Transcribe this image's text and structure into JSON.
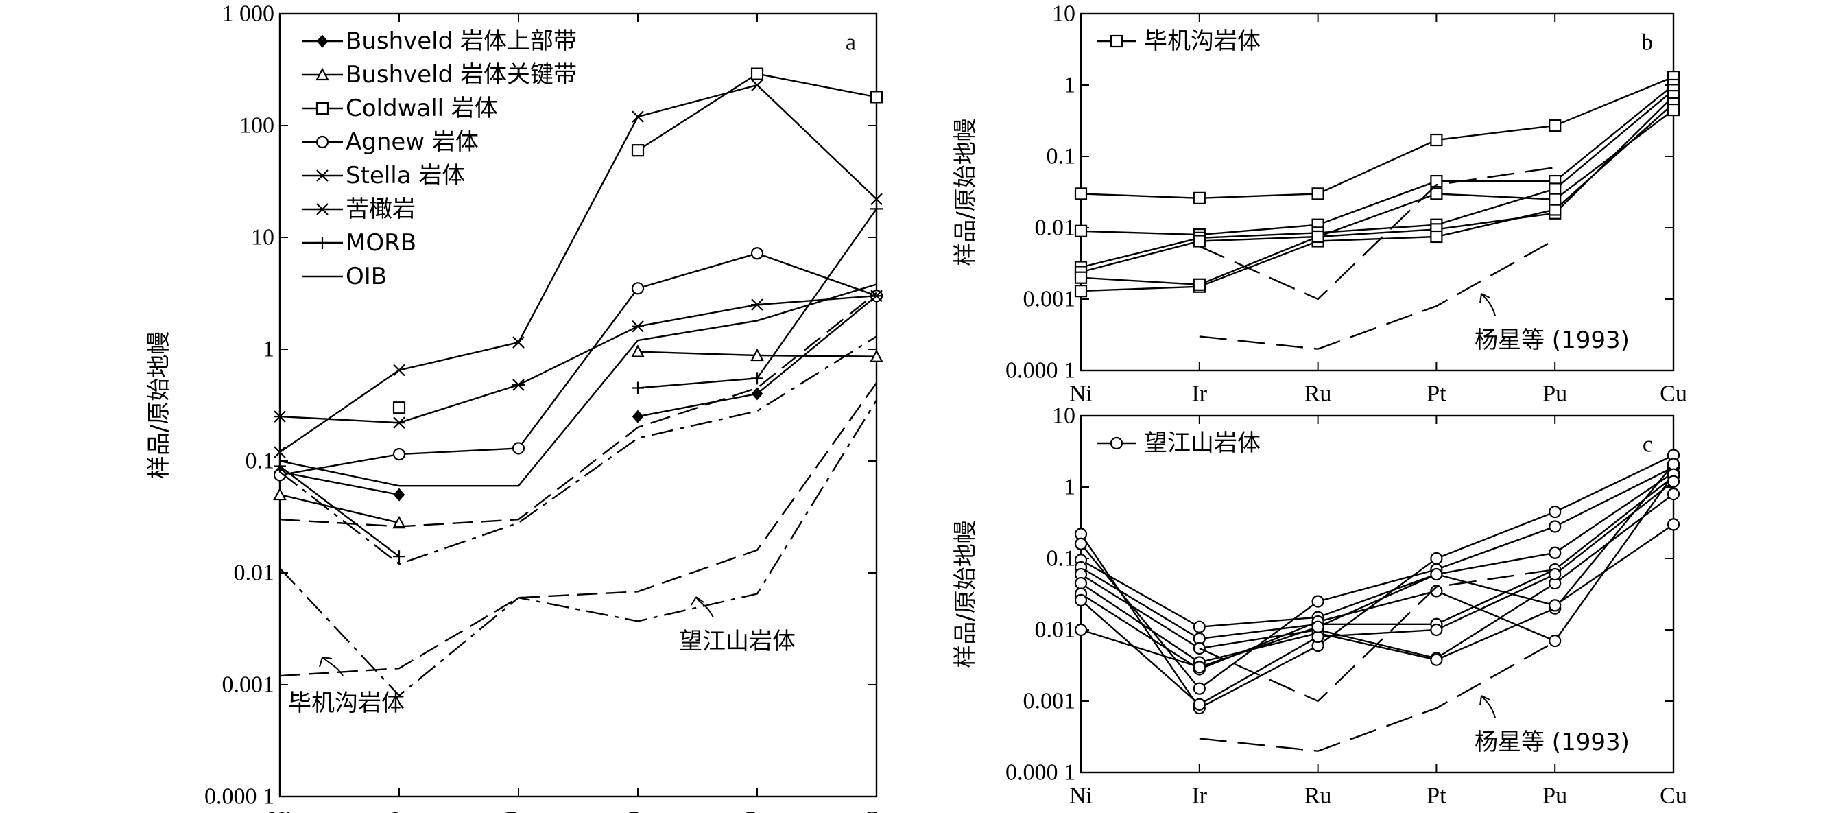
{
  "chart_data": [
    {
      "panel": "a",
      "type": "line",
      "yscale": "log",
      "ylim": [
        0.0001,
        1000
      ],
      "y_ticks": [
        "0.000 1",
        "0.001",
        "0.01",
        "0.1",
        "1",
        "10",
        "100",
        "1 000"
      ],
      "categories": [
        "Ni",
        "Ir",
        "Ru",
        "Pt",
        "Pu",
        "Cu"
      ],
      "ylabel": "样品/原始地幔",
      "panel_label": "a",
      "legend_position": "top-left",
      "series": [
        {
          "name": "Bushveld 岩体上部带",
          "marker": "diamond",
          "dash": "solid",
          "values": [
            0.08,
            0.05,
            null,
            0.25,
            0.4,
            3.0
          ]
        },
        {
          "name": "Bushveld 岩体关键带",
          "marker": "triangle",
          "dash": "solid",
          "values": [
            0.05,
            0.028,
            null,
            0.95,
            0.88,
            0.86
          ]
        },
        {
          "name": "Coldwall 岩体",
          "marker": "square",
          "dash": "solid",
          "values": [
            null,
            0.3,
            null,
            60,
            290,
            180
          ]
        },
        {
          "name": "Agnew 岩体",
          "marker": "circle",
          "dash": "solid",
          "values": [
            0.075,
            0.115,
            0.13,
            3.5,
            7.2,
            3.0
          ]
        },
        {
          "name": "Stella 岩体",
          "marker": "x",
          "dash": "solid",
          "values": [
            0.12,
            0.65,
            1.15,
            120,
            230,
            22
          ]
        },
        {
          "name": "苦橄岩",
          "marker": "asterisk",
          "dash": "solid",
          "values": [
            0.25,
            0.22,
            0.48,
            1.6,
            2.5,
            3.0
          ]
        },
        {
          "name": "MORB",
          "marker": "plus",
          "dash": "solid",
          "values": [
            0.09,
            0.014,
            null,
            0.45,
            0.55,
            18
          ]
        },
        {
          "name": "OIB",
          "marker": "none",
          "dash": "solid",
          "values": [
            0.1,
            0.06,
            0.06,
            1.2,
            1.8,
            3.8
          ]
        },
        {
          "name": "",
          "marker": "none",
          "dash": "dash",
          "values": [
            0.03,
            0.026,
            0.03,
            0.2,
            0.45,
            3.2
          ]
        },
        {
          "name": "",
          "marker": "none",
          "dash": "dashdot",
          "values": [
            0.08,
            0.012,
            0.028,
            0.16,
            0.28,
            1.3
          ]
        },
        {
          "name": "",
          "marker": "none",
          "dash": "dashdot",
          "values": [
            0.011,
            0.0008,
            0.006,
            0.0037,
            0.0065,
            0.35
          ]
        },
        {
          "name": "",
          "marker": "none",
          "dash": "dash",
          "values": [
            0.0012,
            0.0014,
            0.006,
            0.0068,
            0.016,
            0.5
          ]
        }
      ],
      "annotations": [
        "望江山岩体",
        "毕机沟岩体"
      ]
    },
    {
      "panel": "b",
      "type": "line",
      "yscale": "log",
      "ylim": [
        0.0001,
        10
      ],
      "y_ticks": [
        "0.000 1",
        "0.001",
        "0.01",
        "0.1",
        "1",
        "10"
      ],
      "categories": [
        "Ni",
        "Ir",
        "Ru",
        "Pt",
        "Pu",
        "Cu"
      ],
      "ylabel": "样品/原始地幔",
      "panel_label": "b",
      "legend": [
        "毕机沟岩体"
      ],
      "series": [
        {
          "name": "毕机沟岩体",
          "marker": "square",
          "values": [
            0.03,
            0.026,
            0.03,
            0.17,
            0.27,
            1.3
          ]
        },
        {
          "name": "毕机沟岩体",
          "marker": "square",
          "values": [
            0.009,
            0.008,
            0.011,
            0.045,
            0.045,
            1.0
          ]
        },
        {
          "name": "毕机沟岩体",
          "marker": "square",
          "values": [
            0.0028,
            0.0072,
            0.0085,
            0.011,
            0.035,
            0.85
          ]
        },
        {
          "name": "毕机沟岩体",
          "marker": "square",
          "values": [
            0.0024,
            0.0065,
            0.0075,
            0.0095,
            0.016,
            0.7
          ]
        },
        {
          "name": "毕机沟岩体",
          "marker": "square",
          "values": [
            0.0013,
            0.0015,
            0.0065,
            0.0075,
            0.018,
            0.55
          ]
        },
        {
          "name": "毕机沟岩体",
          "marker": "square",
          "values": [
            0.002,
            0.0016,
            0.0075,
            0.03,
            0.025,
            0.45
          ]
        }
      ],
      "reference_dashed": [
        {
          "name": "杨星等 (1993)",
          "values": [
            null,
            0.0055,
            0.001,
            0.04,
            0.07,
            null
          ]
        },
        {
          "name": "杨星等 (1993)",
          "values": [
            null,
            0.0003,
            0.0002,
            0.0008,
            0.0068,
            null
          ]
        }
      ],
      "annotation": "杨星等 (1993)"
    },
    {
      "panel": "c",
      "type": "line",
      "yscale": "log",
      "ylim": [
        0.0001,
        10
      ],
      "y_ticks": [
        "0.000 1",
        "0.001",
        "0.01",
        "0.1",
        "1",
        "10"
      ],
      "categories": [
        "Ni",
        "Ir",
        "Ru",
        "Pt",
        "Pu",
        "Cu"
      ],
      "ylabel": "样品/原始地幔",
      "panel_label": "c",
      "legend": [
        "望江山岩体"
      ],
      "series": [
        {
          "name": "望江山岩体",
          "marker": "circle",
          "values": [
            0.22,
            0.0008,
            0.006,
            0.1,
            0.45,
            2.8
          ]
        },
        {
          "name": "望江山岩体",
          "marker": "circle",
          "values": [
            0.16,
            0.0015,
            0.025,
            0.07,
            0.28,
            1.9
          ]
        },
        {
          "name": "望江山岩体",
          "marker": "circle",
          "values": [
            0.095,
            0.011,
            0.015,
            0.06,
            0.12,
            1.6
          ]
        },
        {
          "name": "望江山岩体",
          "marker": "circle",
          "values": [
            0.075,
            0.0075,
            0.012,
            0.012,
            0.07,
            1.4
          ]
        },
        {
          "name": "望江山岩体",
          "marker": "circle",
          "values": [
            0.06,
            0.0055,
            0.01,
            0.004,
            0.045,
            0.8
          ]
        },
        {
          "name": "望江山岩体",
          "marker": "circle",
          "values": [
            0.045,
            0.0035,
            0.009,
            0.0038,
            0.02,
            2.1
          ]
        },
        {
          "name": "望江山岩体",
          "marker": "circle",
          "values": [
            0.032,
            0.0028,
            0.013,
            0.035,
            0.007,
            1.5
          ]
        },
        {
          "name": "望江山岩体",
          "marker": "circle",
          "values": [
            0.026,
            0.0009,
            0.008,
            0.01,
            0.06,
            1.2
          ]
        },
        {
          "name": "望江山岩体",
          "marker": "circle",
          "values": [
            0.01,
            0.003,
            0.011,
            0.06,
            0.022,
            0.3
          ]
        }
      ],
      "reference_dashed": [
        {
          "name": "杨星等 (1993)",
          "values": [
            null,
            0.0055,
            0.001,
            0.04,
            0.07,
            null
          ]
        },
        {
          "name": "杨星等 (1993)",
          "values": [
            null,
            0.0003,
            0.0002,
            0.0008,
            0.0068,
            null
          ]
        }
      ],
      "annotation": "杨星等 (1993)"
    }
  ]
}
